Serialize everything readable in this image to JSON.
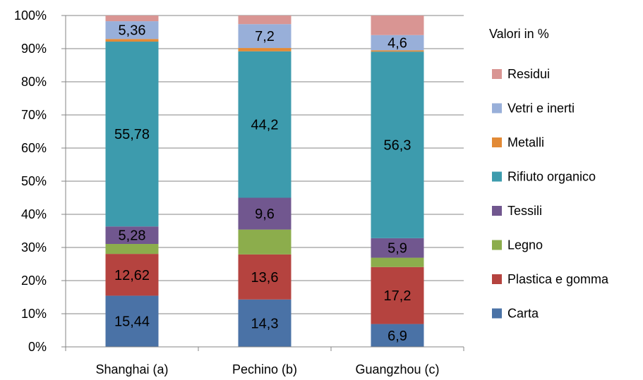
{
  "chart_data": {
    "type": "bar",
    "stacked": true,
    "percent_stacked": true,
    "categories": [
      "Shanghai (a)",
      "Pechino (b)",
      "Guangzhou (c)"
    ],
    "legend_title": "Valori in %",
    "legend_position": "right",
    "ylim": [
      0,
      100
    ],
    "yticks": [
      "0%",
      "10%",
      "20%",
      "30%",
      "40%",
      "50%",
      "60%",
      "70%",
      "80%",
      "90%",
      "100%"
    ],
    "grid": true,
    "series": [
      {
        "name": "Carta",
        "color": "#4a72a6",
        "values": [
          15.44,
          14.3,
          6.9
        ],
        "labels": [
          "15,44",
          "14,3",
          "6,9"
        ]
      },
      {
        "name": "Plastica e gomma",
        "color": "#b5433f",
        "values": [
          12.62,
          13.6,
          17.2
        ],
        "labels": [
          "12,62",
          "13,6",
          "17,2"
        ]
      },
      {
        "name": "Legno",
        "color": "#8cad4c",
        "values": [
          3.0,
          7.5,
          2.8
        ],
        "labels": [
          "",
          "",
          ""
        ]
      },
      {
        "name": "Tessili",
        "color": "#71578f",
        "values": [
          5.28,
          9.6,
          5.9
        ],
        "labels": [
          "5,28",
          "9,6",
          "5,9"
        ]
      },
      {
        "name": "Rifiuto organico",
        "color": "#3d9bad",
        "values": [
          55.78,
          44.2,
          56.3
        ],
        "labels": [
          "55,78",
          "44,2",
          "56,3"
        ]
      },
      {
        "name": "Metalli",
        "color": "#e28a36",
        "values": [
          0.8,
          1.0,
          0.4
        ],
        "labels": [
          "",
          "",
          ""
        ]
      },
      {
        "name": "Vetri e inerti",
        "color": "#98afd9",
        "values": [
          5.36,
          7.2,
          4.6
        ],
        "labels": [
          "5,36",
          "7,2",
          "4,6"
        ]
      },
      {
        "name": "Residui",
        "color": "#d99593",
        "values": [
          1.72,
          2.6,
          5.9
        ],
        "labels": [
          "",
          "",
          ""
        ]
      }
    ]
  }
}
